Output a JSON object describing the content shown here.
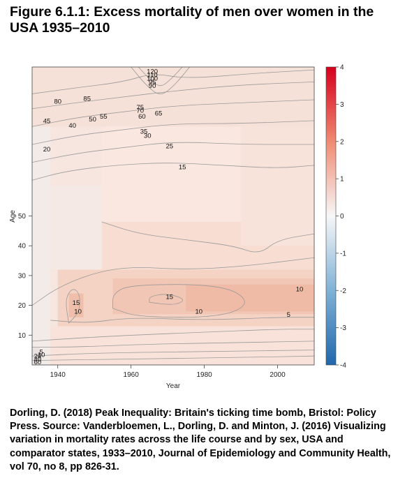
{
  "figure": {
    "title": "Figure 6.1.1: Excess mortality of men over women in the USA 1935–2010",
    "caption": "Dorling, D. (2018) Peak Inequality: Britain's ticking time bomb, Bristol: Policy Press. Source: Vanderbloemen, L., Dorling, D. and Minton, J. (2016) Visualizing variation in mortality rates across the life course and by sex, USA and comparator states, 1933–2010, Journal of Epidemiology and Community Health, vol 70, no 8, pp 826-31."
  },
  "chart_data": {
    "type": "heatmap",
    "title": "",
    "xlabel": "Year",
    "ylabel": "Age",
    "xlim": [
      1933,
      2010
    ],
    "ylim": [
      0,
      100
    ],
    "x_ticks": [
      1940,
      1960,
      1980,
      2000
    ],
    "y_ticks": [
      10,
      20,
      30,
      40,
      50
    ],
    "colorbar": {
      "min": -4,
      "max": 4,
      "ticks": [
        4,
        3,
        2,
        1,
        0,
        -1,
        -2,
        -3,
        -4
      ],
      "low_color": "#2166ac",
      "mid_color": "#f7f7f7",
      "high_color": "#d6001c"
    },
    "contour_labels": [
      {
        "text": "80",
        "x": 1940,
        "y": 88.5
      },
      {
        "text": "85",
        "x": 1948,
        "y": 89.5
      },
      {
        "text": "75",
        "x": 1962.5,
        "y": 86.5
      },
      {
        "text": "70",
        "x": 1962.5,
        "y": 85.5
      },
      {
        "text": "65",
        "x": 1967.5,
        "y": 84.5
      },
      {
        "text": "60",
        "x": 1963,
        "y": 83.5
      },
      {
        "text": "55",
        "x": 1952.5,
        "y": 83.5
      },
      {
        "text": "50",
        "x": 1949.5,
        "y": 82.5
      },
      {
        "text": "45",
        "x": 1937,
        "y": 82
      },
      {
        "text": "40",
        "x": 1944,
        "y": 80.5
      },
      {
        "text": "35",
        "x": 1963.5,
        "y": 78.5
      },
      {
        "text": "30",
        "x": 1964.5,
        "y": 77
      },
      {
        "text": "25",
        "x": 1970.5,
        "y": 73.5
      },
      {
        "text": "20",
        "x": 1937,
        "y": 72.5
      },
      {
        "text": "15",
        "x": 1974,
        "y": 66.5
      },
      {
        "text": "15",
        "x": 1945,
        "y": 21
      },
      {
        "text": "10",
        "x": 1945.5,
        "y": 18
      },
      {
        "text": "15",
        "x": 1970.5,
        "y": 23
      },
      {
        "text": "10",
        "x": 1978.5,
        "y": 18
      },
      {
        "text": "5",
        "x": 2003,
        "y": 17
      },
      {
        "text": "10",
        "x": 2006,
        "y": 25.5
      },
      {
        "text": "5",
        "x": 1935.5,
        "y": 4.5
      },
      {
        "text": "10",
        "x": 1935.5,
        "y": 3.5
      },
      {
        "text": "20",
        "x": 1934.5,
        "y": 3
      },
      {
        "text": "40",
        "x": 1934.5,
        "y": 2
      },
      {
        "text": "60",
        "x": 1934.5,
        "y": 1
      }
    ],
    "crowded_top_labels": [
      "120",
      "110",
      "100",
      "95",
      "90"
    ],
    "contour_levels_note": ""
  }
}
